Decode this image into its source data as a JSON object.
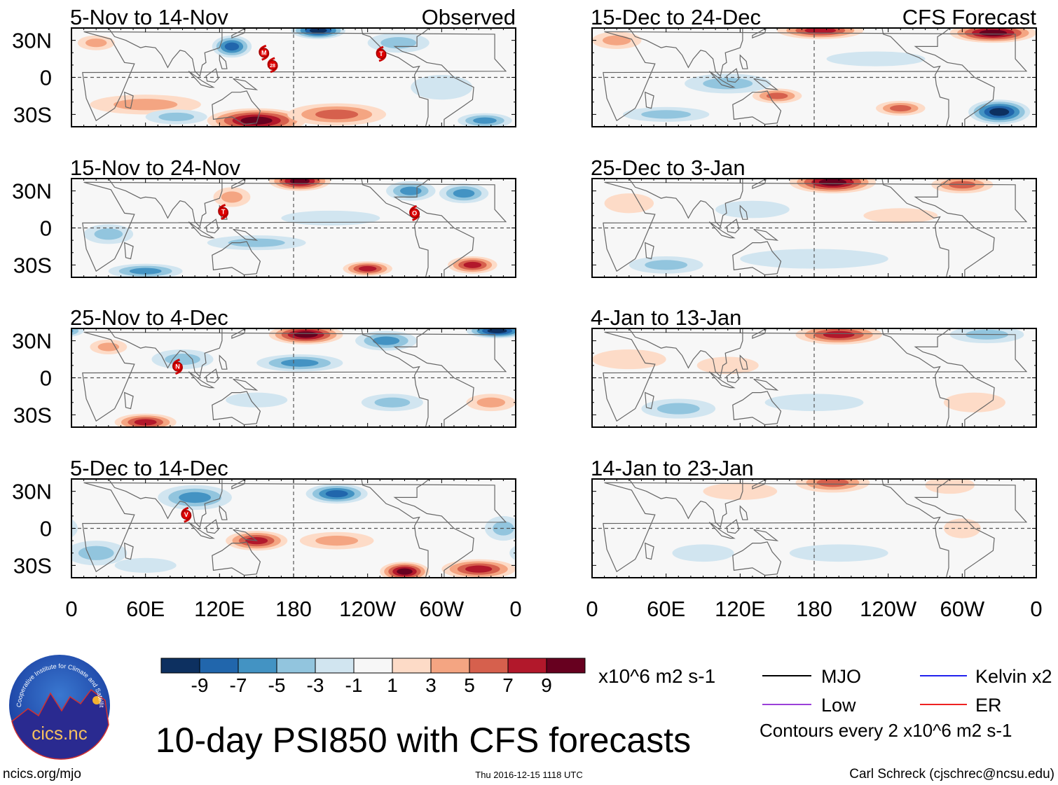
{
  "title": "10-day PSI850 with CFS forecasts",
  "observed_label": "Observed",
  "forecast_label": "CFS Forecast",
  "lat_labels": [
    "30N",
    "0",
    "30S"
  ],
  "lon_labels": [
    "0",
    "60E",
    "120E",
    "180",
    "120W",
    "60W",
    "0"
  ],
  "colorbar": {
    "levels": [
      "-9",
      "-7",
      "-5",
      "-3",
      "-1",
      "1",
      "3",
      "5",
      "7",
      "9"
    ],
    "colors": [
      "#0d3060",
      "#2166ac",
      "#4393c3",
      "#92c5de",
      "#d1e5f0",
      "#f7f7f7",
      "#fddbc7",
      "#f4a582",
      "#d6604d",
      "#b2182b",
      "#67001f"
    ],
    "units": "x10^6 m2 s-1"
  },
  "legend": {
    "items": [
      {
        "label": "MJO",
        "color": "#000000"
      },
      {
        "label": "Kelvin x2",
        "color": "#2222ee"
      },
      {
        "label": "Low",
        "color": "#9a40d8"
      },
      {
        "label": "ER",
        "color": "#ee2222"
      }
    ],
    "contours_note": "Contours every 2 x10^6 m2 s-1"
  },
  "footer": {
    "url": "ncics.org/mjo",
    "timestamp": "Thu 2016-12-15 1118 UTC",
    "credit": "Carl Schreck (cjschrec@ncsu.edu)",
    "logo_text": "cics.nc",
    "logo_ring_text": "Cooperative Institute for Climate and Satellites"
  },
  "panels": [
    {
      "title": "5-Nov to 14-Nov",
      "column": "observed",
      "anomalies": [
        [
          130,
          25,
          16,
          9,
          -7
        ],
        [
          200,
          38,
          22,
          7,
          -9
        ],
        [
          150,
          -35,
          40,
          10,
          9
        ],
        [
          215,
          -30,
          40,
          9,
          5
        ],
        [
          60,
          -22,
          45,
          8,
          3
        ],
        [
          335,
          -35,
          22,
          6,
          -5
        ],
        [
          265,
          28,
          25,
          8,
          -3
        ],
        [
          85,
          -32,
          25,
          6,
          -3
        ],
        [
          20,
          28,
          15,
          6,
          3
        ],
        [
          300,
          -8,
          25,
          10,
          -1
        ]
      ],
      "storms": [
        [
          156,
          20,
          "M"
        ],
        [
          163,
          10,
          "28"
        ],
        [
          251,
          19,
          "T"
        ]
      ]
    },
    {
      "title": "15-Nov to 24-Nov",
      "column": "observed",
      "anomalies": [
        [
          185,
          38,
          25,
          8,
          9
        ],
        [
          275,
          30,
          20,
          8,
          -5
        ],
        [
          318,
          28,
          20,
          8,
          -5
        ],
        [
          60,
          -35,
          30,
          6,
          -5
        ],
        [
          130,
          25,
          15,
          8,
          3
        ],
        [
          240,
          -33,
          20,
          6,
          7
        ],
        [
          325,
          -30,
          20,
          7,
          7
        ],
        [
          150,
          -12,
          40,
          6,
          -3
        ],
        [
          210,
          8,
          40,
          6,
          -1
        ],
        [
          30,
          -5,
          20,
          8,
          -3
        ]
      ],
      "storms": [
        [
          123,
          13,
          "T"
        ],
        [
          278,
          12,
          "O"
        ]
      ]
    },
    {
      "title": "25-Nov to 4-Dec",
      "column": "observed",
      "anomalies": [
        [
          190,
          35,
          30,
          8,
          9
        ],
        [
          255,
          30,
          25,
          8,
          -5
        ],
        [
          345,
          38,
          25,
          6,
          -9
        ],
        [
          185,
          12,
          35,
          7,
          -5
        ],
        [
          60,
          -36,
          25,
          7,
          7
        ],
        [
          260,
          -20,
          25,
          7,
          -3
        ],
        [
          340,
          -20,
          20,
          7,
          3
        ],
        [
          90,
          15,
          25,
          8,
          -3
        ],
        [
          150,
          -18,
          25,
          6,
          -1
        ],
        [
          30,
          25,
          15,
          6,
          3
        ]
      ],
      "storms": [
        [
          86,
          9,
          "N"
        ]
      ]
    },
    {
      "title": "5-Dec to 14-Dec",
      "column": "observed",
      "anomalies": [
        [
          100,
          25,
          30,
          10,
          -5
        ],
        [
          215,
          28,
          25,
          8,
          -7
        ],
        [
          270,
          -35,
          20,
          8,
          9
        ],
        [
          330,
          -33,
          30,
          8,
          7
        ],
        [
          150,
          -10,
          25,
          8,
          7
        ],
        [
          215,
          -10,
          30,
          7,
          3
        ],
        [
          20,
          -20,
          25,
          10,
          -3
        ],
        [
          350,
          0,
          15,
          10,
          -3
        ],
        [
          60,
          -30,
          25,
          6,
          -1
        ]
      ],
      "storms": [
        [
          93,
          11,
          "V"
        ]
      ]
    },
    {
      "title": "15-Dec to 24-Dec",
      "column": "forecast",
      "anomalies": [
        [
          185,
          38,
          35,
          7,
          7
        ],
        [
          325,
          36,
          35,
          8,
          9
        ],
        [
          330,
          -28,
          25,
          10,
          -9
        ],
        [
          250,
          -25,
          20,
          6,
          5
        ],
        [
          150,
          -15,
          20,
          6,
          5
        ],
        [
          60,
          -30,
          35,
          6,
          -3
        ],
        [
          110,
          -5,
          35,
          8,
          -3
        ],
        [
          20,
          30,
          20,
          7,
          3
        ],
        [
          230,
          15,
          40,
          6,
          -1
        ]
      ],
      "storms": []
    },
    {
      "title": "25-Dec to 3-Jan",
      "column": "forecast",
      "anomalies": [
        [
          195,
          37,
          35,
          9,
          9
        ],
        [
          300,
          35,
          25,
          7,
          5
        ],
        [
          60,
          -30,
          30,
          7,
          -3
        ],
        [
          180,
          -25,
          60,
          8,
          -1
        ],
        [
          130,
          15,
          30,
          7,
          -1
        ],
        [
          30,
          20,
          20,
          8,
          1
        ],
        [
          250,
          10,
          30,
          6,
          1
        ]
      ],
      "storms": []
    },
    {
      "title": "4-Jan to 13-Jan",
      "column": "forecast",
      "anomalies": [
        [
          200,
          35,
          35,
          8,
          7
        ],
        [
          320,
          35,
          30,
          7,
          -3
        ],
        [
          70,
          -25,
          30,
          8,
          -3
        ],
        [
          180,
          -20,
          40,
          7,
          -1
        ],
        [
          30,
          15,
          30,
          8,
          1
        ],
        [
          310,
          -20,
          25,
          8,
          1
        ],
        [
          110,
          10,
          25,
          7,
          1
        ]
      ],
      "storms": []
    },
    {
      "title": "14-Jan to 23-Jan",
      "column": "forecast",
      "anomalies": [
        [
          195,
          37,
          30,
          8,
          5
        ],
        [
          120,
          30,
          30,
          7,
          1
        ],
        [
          300,
          0,
          15,
          8,
          1
        ],
        [
          90,
          -20,
          25,
          7,
          -1
        ],
        [
          200,
          -20,
          40,
          7,
          -1
        ],
        [
          290,
          35,
          20,
          7,
          1
        ]
      ],
      "storms": []
    }
  ]
}
